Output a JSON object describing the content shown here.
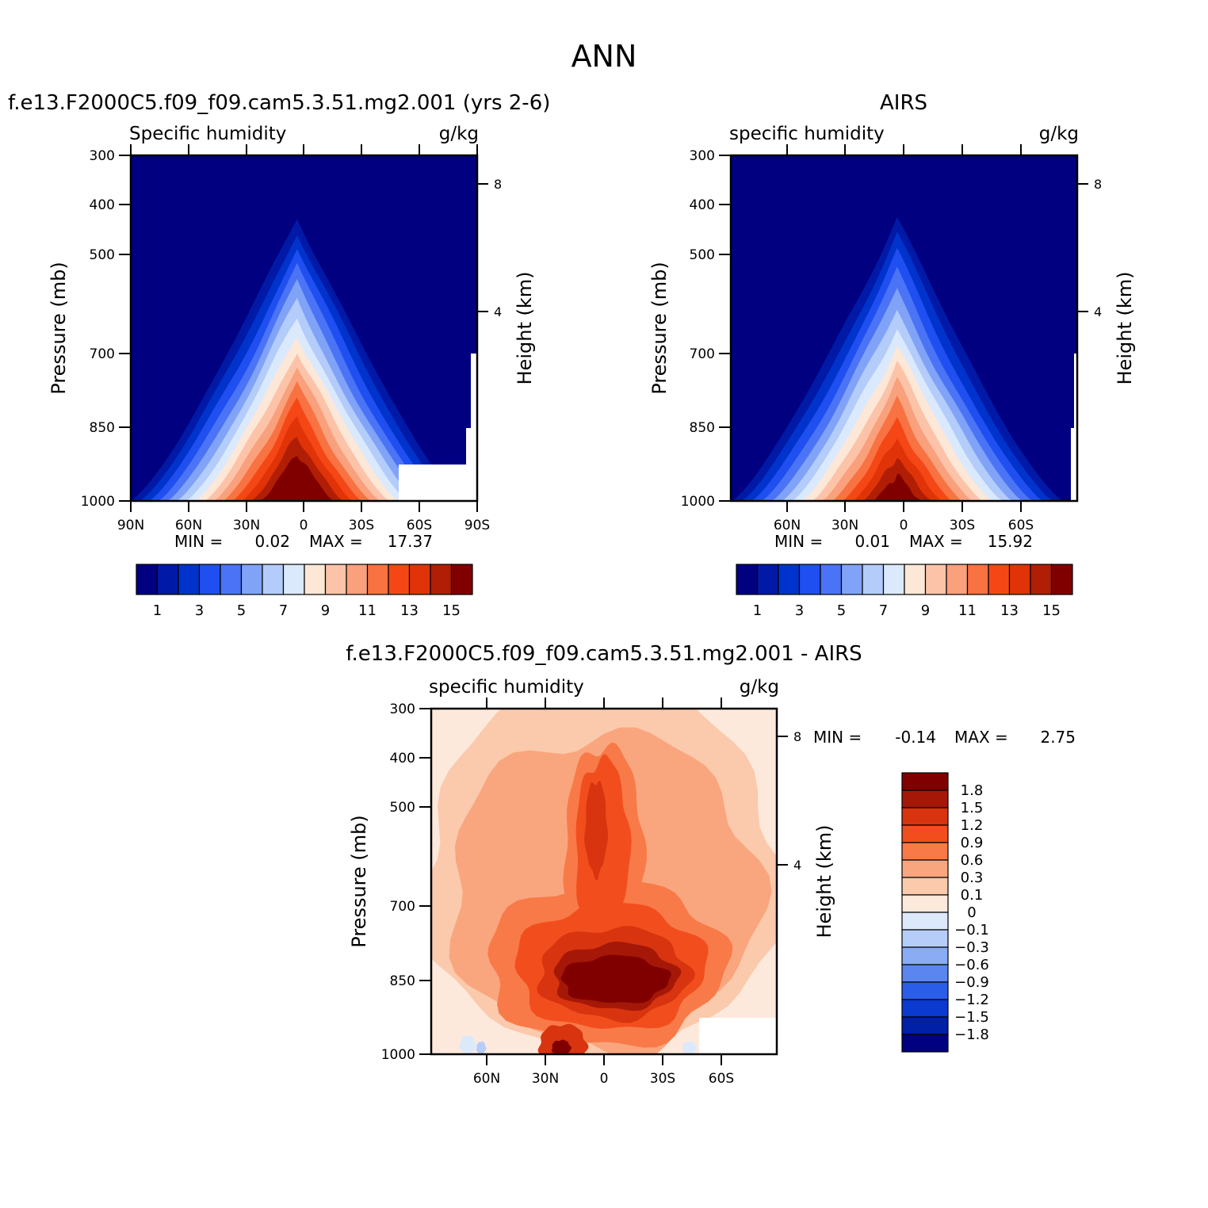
{
  "figure": {
    "title": "ANN"
  },
  "chart_data": [
    {
      "type": "heatmap",
      "title": "f.e13.F2000C5.f09_f09.cam5.3.51.mg2.001 (yrs 2-6)",
      "left_string": "Specific humidity",
      "right_string": "g/kg",
      "xlabel": "",
      "ylabel": "Pressure (mb)",
      "y2label": "Height (km)",
      "x_ticks": [
        "90N",
        "60N",
        "30N",
        "0",
        "30S",
        "60S",
        "90S"
      ],
      "y_ticks": [
        "300",
        "400",
        "500",
        "700",
        "850",
        "1000"
      ],
      "y2_ticks": [
        "8",
        "4"
      ],
      "stats": {
        "min_label": "MIN =",
        "min": "0.02",
        "max_label": "MAX =",
        "max": "17.37"
      },
      "peak_value": 17.37,
      "colorbar": {
        "orientation": "horizontal",
        "levels": [
          1,
          2,
          3,
          4,
          5,
          6,
          7,
          8,
          9,
          10,
          11,
          12,
          13,
          14,
          15
        ],
        "labels": [
          "1",
          "3",
          "5",
          "7",
          "9",
          "11",
          "13",
          "15"
        ]
      }
    },
    {
      "type": "heatmap",
      "title": "AIRS",
      "left_string": "specific humidity",
      "right_string": "g/kg",
      "xlabel": "",
      "ylabel": "Pressure (mb)",
      "y2label": "Height (km)",
      "x_ticks": [
        "60N",
        "30N",
        "0",
        "30S",
        "60S"
      ],
      "y_ticks": [
        "300",
        "400",
        "500",
        "700",
        "850",
        "1000"
      ],
      "y2_ticks": [
        "8",
        "4"
      ],
      "stats": {
        "min_label": "MIN =",
        "min": "0.01",
        "max_label": "MAX =",
        "max": "15.92"
      },
      "peak_value": 15.92,
      "colorbar": {
        "orientation": "horizontal",
        "levels": [
          1,
          2,
          3,
          4,
          5,
          6,
          7,
          8,
          9,
          10,
          11,
          12,
          13,
          14,
          15
        ],
        "labels": [
          "1",
          "3",
          "5",
          "7",
          "9",
          "11",
          "13",
          "15"
        ]
      }
    },
    {
      "type": "heatmap",
      "title": "f.e13.F2000C5.f09_f09.cam5.3.51.mg2.001 - AIRS",
      "left_string": "specific humidity",
      "right_string": "g/kg",
      "xlabel": "",
      "ylabel": "Pressure (mb)",
      "y2label": "Height (km)",
      "x_ticks": [
        "60N",
        "30N",
        "0",
        "30S",
        "60S"
      ],
      "y_ticks": [
        "300",
        "400",
        "500",
        "700",
        "850",
        "1000"
      ],
      "y2_ticks": [
        "8",
        "4"
      ],
      "stats": {
        "min_label": "MIN =",
        "min": "-0.14",
        "max_label": "MAX =",
        "max": "2.75"
      },
      "colorbar": {
        "orientation": "vertical",
        "levels": [
          1.8,
          1.5,
          1.2,
          0.9,
          0.6,
          0.3,
          0.1,
          0,
          -0.1,
          -0.3,
          -0.6,
          -0.9,
          -1.2,
          -1.5,
          -1.8
        ],
        "labels": [
          "1.8",
          "1.5",
          "1.2",
          "0.9",
          "0.6",
          "0.3",
          "0.1",
          "0",
          "-0.1",
          "-0.3",
          "-0.6",
          "-0.9",
          "-1.2",
          "-1.5",
          "-1.8"
        ]
      }
    }
  ],
  "colors": {
    "sequential": [
      "#000080",
      "#0019a6",
      "#0033cc",
      "#1f4ff0",
      "#4a74f5",
      "#80a3f7",
      "#b3ccfa",
      "#dbe9fd",
      "#fde7d7",
      "#fcc3a8",
      "#f9a07c",
      "#f87242",
      "#f54716",
      "#e03308",
      "#b01e05",
      "#800000"
    ],
    "diverging": [
      "#800000",
      "#a51808",
      "#d8340f",
      "#f24e1d",
      "#f87a48",
      "#f9a67e",
      "#fbc9ac",
      "#fde9dc",
      "#dce9fb",
      "#b6cdf9",
      "#8aacf5",
      "#5b86f0",
      "#2b5ee8",
      "#0b3ad0",
      "#0020a8",
      "#000080"
    ]
  }
}
